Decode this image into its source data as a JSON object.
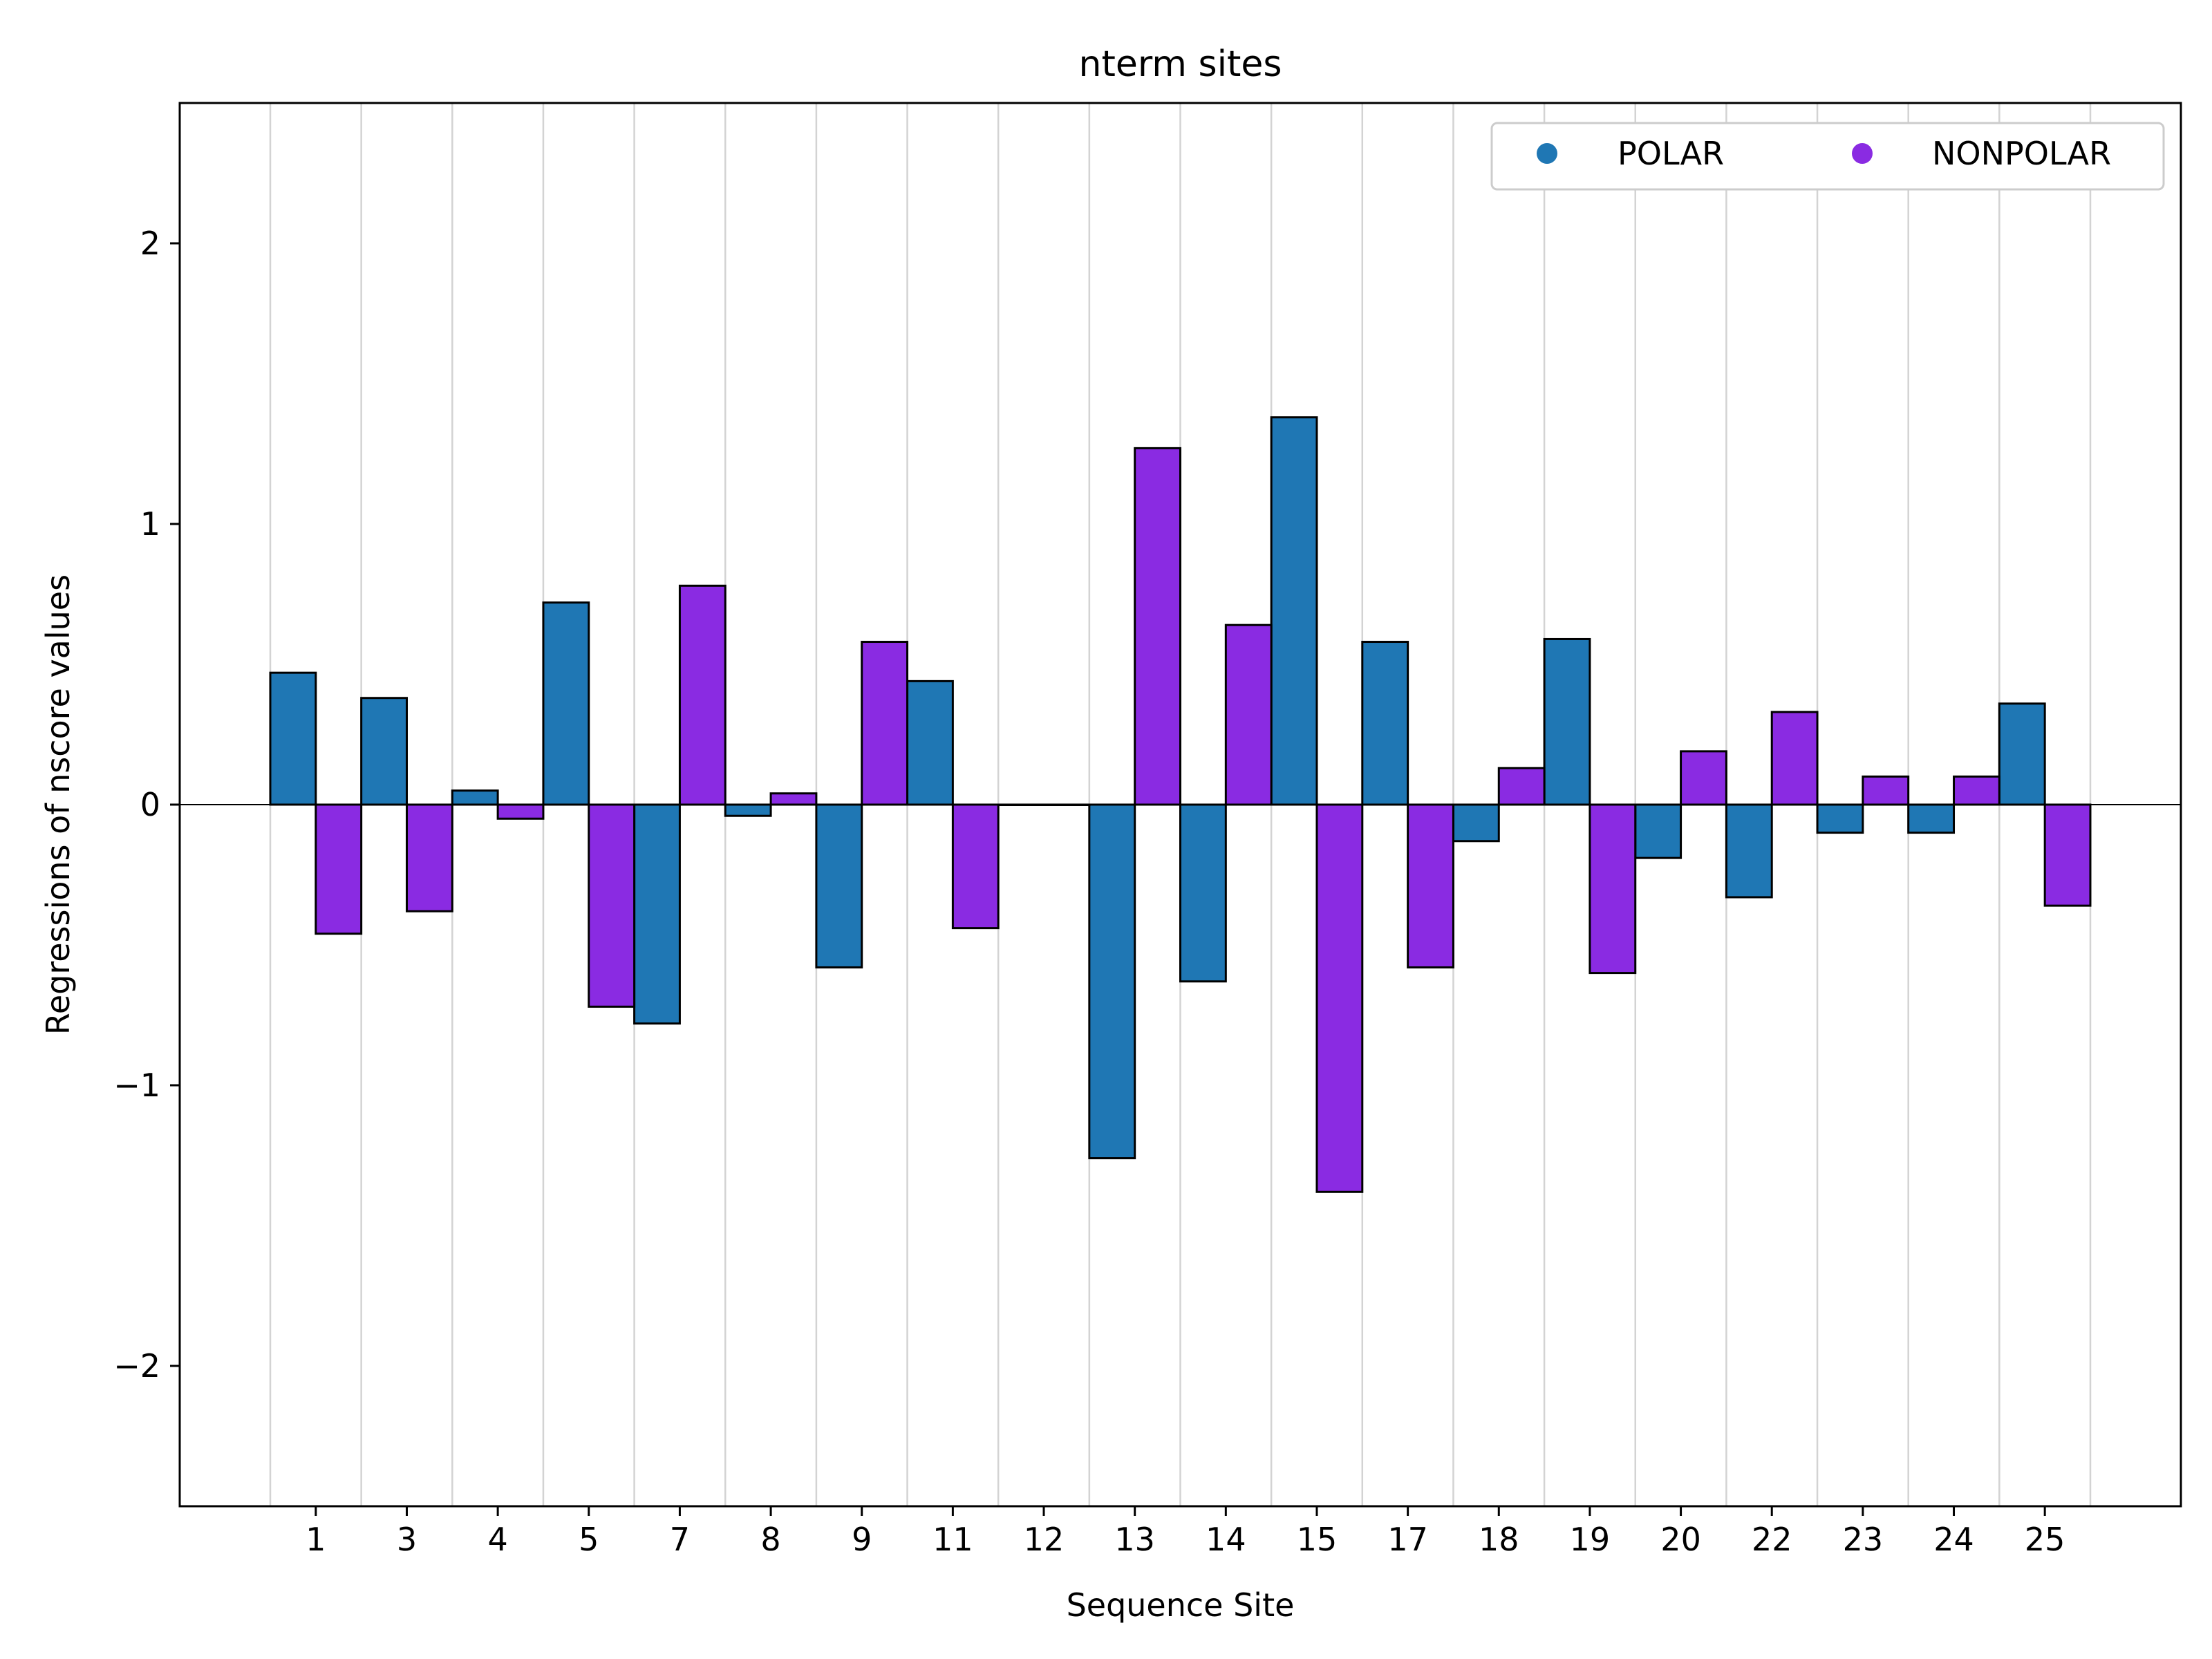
{
  "chart_data": {
    "type": "bar",
    "title": "nterm sites",
    "xlabel": "Sequence Site",
    "ylabel": "Regressions of nscore values",
    "ylim": [
      -2.5,
      2.5
    ],
    "yticks": [
      -2,
      -1,
      0,
      1,
      2
    ],
    "ytick_labels": [
      "−2",
      "−1",
      "0",
      "1",
      "2"
    ],
    "categories": [
      "1",
      "3",
      "4",
      "5",
      "7",
      "8",
      "9",
      "11",
      "12",
      "13",
      "14",
      "15",
      "17",
      "18",
      "19",
      "20",
      "22",
      "23",
      "24",
      "25"
    ],
    "grid": "vertical lines between sites",
    "legend_position": "top-right",
    "series": [
      {
        "name": "POLAR",
        "color": "#1f77b4",
        "values": [
          0.47,
          0.38,
          0.05,
          0.72,
          -0.78,
          -0.04,
          -0.58,
          0.44,
          0.0,
          -1.26,
          -0.63,
          1.38,
          0.58,
          -0.13,
          0.59,
          -0.19,
          -0.33,
          -0.1,
          -0.1,
          0.36
        ]
      },
      {
        "name": "NONPOLAR",
        "color": "#8a2be2",
        "values": [
          -0.46,
          -0.38,
          -0.05,
          -0.72,
          0.78,
          0.04,
          0.58,
          -0.44,
          0.0,
          1.27,
          0.64,
          -1.38,
          -0.58,
          0.13,
          -0.6,
          0.19,
          0.33,
          0.1,
          0.1,
          -0.36
        ]
      }
    ]
  }
}
